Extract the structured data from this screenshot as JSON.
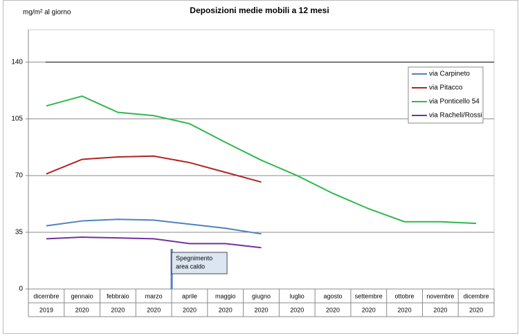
{
  "chart_data": {
    "type": "line",
    "title": "Deposizioni medie mobili a 12 mesi",
    "y_label": "mg/m² al giorno",
    "categories": [
      "dicembre",
      "gennaio",
      "febbraio",
      "marzo",
      "aprile",
      "maggio",
      "giugno",
      "luglio",
      "agosto",
      "settembre",
      "ottobre",
      "novembre",
      "dicembre"
    ],
    "category_years": [
      "2019",
      "2020",
      "2020",
      "2020",
      "2020",
      "2020",
      "2020",
      "2020",
      "2020",
      "2020",
      "2020",
      "2020",
      "2020"
    ],
    "series": [
      {
        "name": "via Carpineto",
        "color": "#4f81bd",
        "values": [
          39,
          42,
          43,
          42.5,
          40,
          37.5,
          34,
          null,
          null,
          null,
          null,
          null,
          null
        ]
      },
      {
        "name": "via Pitacco",
        "color": "#b22222",
        "values": [
          71,
          80,
          81.5,
          82,
          78,
          72,
          66,
          null,
          null,
          null,
          null,
          null,
          null
        ]
      },
      {
        "name": "via Ponticello 54",
        "color": "#2eb84b",
        "values": [
          113,
          119,
          109,
          107,
          102,
          90.5,
          79.5,
          70,
          59,
          49.5,
          41.5,
          41.5,
          40.5
        ]
      },
      {
        "name": "via Racheli/Rossi",
        "color": "#7030a0",
        "values": [
          31,
          32,
          31.5,
          31,
          28,
          28,
          25.5,
          null,
          null,
          null,
          null,
          null,
          null
        ]
      }
    ],
    "reference_line": 140,
    "annotation": [
      "Spegnimento",
      "area caldo"
    ],
    "ylim": [
      0,
      160
    ],
    "yticks": [
      0,
      35,
      70,
      105,
      140
    ],
    "grid": true
  }
}
